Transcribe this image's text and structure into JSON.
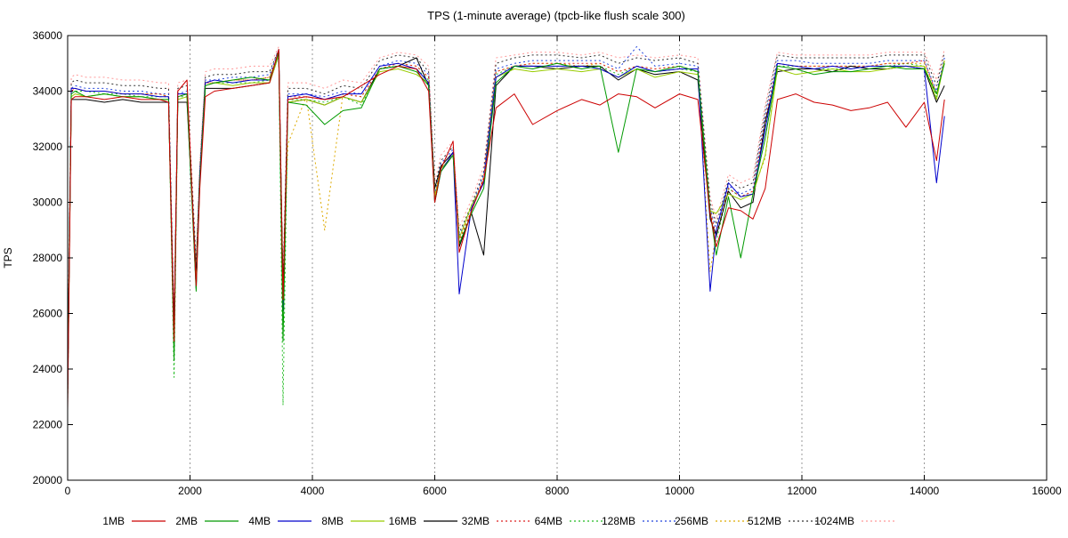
{
  "chart_data": {
    "type": "line",
    "title": "TPS (1-minute average) (tpcb-like flush scale 300)",
    "xlabel": "",
    "ylabel": "TPS",
    "xlim": [
      0,
      16000
    ],
    "ylim": [
      20000,
      36000
    ],
    "xticks": [
      0,
      2000,
      4000,
      6000,
      8000,
      10000,
      12000,
      14000,
      16000
    ],
    "yticks": [
      20000,
      22000,
      24000,
      26000,
      28000,
      30000,
      32000,
      34000,
      36000
    ],
    "grid": {
      "x": true,
      "y": false
    },
    "legend_position": "bottom",
    "x": [
      0,
      60,
      120,
      300,
      600,
      900,
      1200,
      1500,
      1650,
      1740,
      1800,
      1950,
      2100,
      2160,
      2250,
      2400,
      2700,
      3000,
      3300,
      3450,
      3520,
      3600,
      3900,
      4200,
      4500,
      4800,
      5100,
      5400,
      5700,
      5900,
      6000,
      6100,
      6300,
      6400,
      6600,
      6800,
      7000,
      7300,
      7600,
      8000,
      8400,
      8700,
      9000,
      9300,
      9600,
      10000,
      10300,
      10500,
      10600,
      10800,
      11000,
      11200,
      11400,
      11600,
      11900,
      12200,
      12500,
      12800,
      13100,
      13400,
      13700,
      14000,
      14200,
      14330
    ],
    "series": [
      {
        "name": "1MB",
        "color": "#cc0000",
        "dash": "solid",
        "values": [
          22500,
          33700,
          33800,
          33800,
          33700,
          33800,
          33700,
          33700,
          33600,
          25000,
          34000,
          34400,
          27000,
          30500,
          33800,
          34000,
          34100,
          34200,
          34300,
          35500,
          26500,
          33700,
          33800,
          33700,
          33800,
          34200,
          34600,
          34900,
          34800,
          34000,
          30000,
          31200,
          32200,
          28200,
          29700,
          30800,
          33400,
          33900,
          32800,
          33300,
          33700,
          33500,
          33900,
          33800,
          33400,
          33900,
          33700,
          29600,
          28400,
          29800,
          29700,
          29400,
          30500,
          33700,
          33900,
          33600,
          33500,
          33300,
          33400,
          33600,
          32700,
          33600,
          31500,
          33700
        ]
      },
      {
        "name": "2MB",
        "color": "#009900",
        "dash": "solid",
        "values": [
          23000,
          33900,
          34000,
          33800,
          33900,
          33800,
          33800,
          33700,
          33700,
          24300,
          33800,
          33900,
          26800,
          30700,
          34200,
          34300,
          34400,
          34500,
          34400,
          35400,
          25000,
          33600,
          33500,
          32800,
          33300,
          33400,
          34800,
          34900,
          34700,
          34200,
          30000,
          31100,
          31700,
          28500,
          29600,
          30500,
          34300,
          34900,
          34800,
          35000,
          34800,
          34900,
          31800,
          34800,
          34700,
          34900,
          34700,
          29700,
          28100,
          30200,
          28000,
          30300,
          32300,
          34900,
          34800,
          34600,
          34700,
          34700,
          34800,
          34900,
          34800,
          34800,
          33900,
          35000
        ]
      },
      {
        "name": "4MB",
        "color": "#0000cc",
        "dash": "solid",
        "values": [
          23200,
          34100,
          34100,
          34000,
          34000,
          33900,
          33900,
          33800,
          33800,
          24800,
          33900,
          33900,
          26900,
          30900,
          34300,
          34400,
          34300,
          34400,
          34400,
          35400,
          26100,
          33800,
          33900,
          33700,
          33900,
          33900,
          34900,
          35000,
          34800,
          34300,
          30000,
          31100,
          31800,
          26700,
          29800,
          30700,
          34500,
          34900,
          34900,
          34900,
          34900,
          34800,
          34500,
          34900,
          34700,
          34800,
          34800,
          26800,
          29000,
          30700,
          30200,
          30300,
          32600,
          35000,
          34900,
          34800,
          34900,
          34800,
          34900,
          34900,
          34900,
          34800,
          30700,
          33100
        ]
      },
      {
        "name": "8MB",
        "color": "#99cc00",
        "dash": "solid",
        "values": [
          23500,
          33800,
          33900,
          33800,
          33900,
          33800,
          33800,
          33700,
          33700,
          24700,
          33700,
          33800,
          27100,
          30900,
          34200,
          34300,
          34200,
          34300,
          34300,
          35300,
          26200,
          33600,
          33700,
          33500,
          33800,
          33600,
          34700,
          34800,
          34600,
          34300,
          30200,
          31200,
          31700,
          28700,
          29900,
          30700,
          34500,
          34800,
          34700,
          34800,
          34700,
          34800,
          34500,
          34800,
          34500,
          34700,
          34600,
          29700,
          29600,
          30300,
          30100,
          30300,
          31700,
          34800,
          34600,
          34700,
          34800,
          34700,
          34700,
          34800,
          34900,
          34900,
          33700,
          35100
        ]
      },
      {
        "name": "16MB",
        "color": "#000000",
        "dash": "solid",
        "values": [
          23300,
          33700,
          33700,
          33700,
          33600,
          33700,
          33600,
          33600,
          33600,
          25400,
          33600,
          33600,
          27400,
          31000,
          34100,
          34100,
          34100,
          34200,
          34300,
          35300,
          26800,
          33600,
          33700,
          33500,
          33800,
          33600,
          34800,
          34900,
          35200,
          34200,
          30500,
          31300,
          31800,
          28400,
          29600,
          28100,
          34200,
          34900,
          34900,
          34800,
          34900,
          34900,
          34400,
          34800,
          34600,
          34700,
          34400,
          29400,
          28800,
          30400,
          29800,
          30000,
          32900,
          34700,
          34800,
          34800,
          34700,
          34900,
          34800,
          34800,
          34900,
          34800,
          33600,
          34200
        ]
      },
      {
        "name": "32MB",
        "color": "#dd2222",
        "dash": "dotted",
        "values": [
          23000,
          34000,
          34100,
          34000,
          34000,
          33900,
          33900,
          33900,
          33800,
          24900,
          33800,
          33900,
          27300,
          30900,
          34300,
          34300,
          34400,
          34400,
          34500,
          35400,
          26400,
          33800,
          33800,
          33700,
          33900,
          33800,
          34800,
          35000,
          34900,
          34500,
          30200,
          31300,
          31800,
          28600,
          29700,
          30900,
          34700,
          34900,
          35000,
          35000,
          35000,
          35000,
          34700,
          34900,
          34800,
          34900,
          34700,
          29700,
          28800,
          30500,
          30200,
          30400,
          33000,
          35000,
          34900,
          34900,
          34900,
          34900,
          34900,
          35000,
          35000,
          35100,
          33900,
          35100
        ]
      },
      {
        "name": "64MB",
        "color": "#22bb22",
        "dash": "dotted",
        "values": [
          22800,
          34000,
          34000,
          34000,
          33900,
          33900,
          33800,
          33800,
          33800,
          23700,
          33800,
          33800,
          26900,
          30800,
          34200,
          34300,
          34300,
          34300,
          34400,
          35300,
          22700,
          33700,
          33700,
          33600,
          33800,
          33500,
          34800,
          34900,
          34800,
          34400,
          30100,
          31200,
          31700,
          28500,
          29700,
          30800,
          34600,
          34900,
          34900,
          34900,
          34900,
          34900,
          34600,
          34900,
          34700,
          34800,
          34700,
          29600,
          28600,
          30500,
          30200,
          30300,
          32800,
          34900,
          34900,
          34800,
          34800,
          34800,
          34900,
          34900,
          35000,
          34900,
          33800,
          35100
        ]
      },
      {
        "name": "128MB",
        "color": "#2244dd",
        "dash": "dotted",
        "values": [
          23400,
          34100,
          34200,
          34100,
          34100,
          34000,
          34000,
          33900,
          33900,
          25100,
          33900,
          34000,
          27500,
          31000,
          34400,
          34400,
          34500,
          34500,
          34600,
          35500,
          26600,
          33900,
          33900,
          33800,
          34000,
          33900,
          34900,
          35100,
          35000,
          34600,
          30300,
          31400,
          31900,
          28800,
          29800,
          31000,
          34800,
          35000,
          35100,
          35100,
          35100,
          35100,
          34800,
          35600,
          34900,
          35000,
          34900,
          29800,
          29000,
          30600,
          30300,
          30500,
          33100,
          35100,
          35100,
          35000,
          35000,
          35000,
          35000,
          35100,
          35100,
          35100,
          34000,
          35200
        ]
      },
      {
        "name": "256MB",
        "color": "#ddaa00",
        "dash": "dotted",
        "values": [
          23600,
          34000,
          34100,
          34000,
          34000,
          33900,
          33900,
          33900,
          33800,
          25300,
          33800,
          33900,
          27600,
          31000,
          34300,
          34300,
          34400,
          34400,
          34500,
          35400,
          26700,
          32100,
          33800,
          29000,
          33900,
          33800,
          34800,
          35000,
          34900,
          34500,
          30200,
          31300,
          31800,
          28700,
          29700,
          30900,
          34700,
          34900,
          35000,
          35000,
          34900,
          35000,
          34700,
          34900,
          34800,
          34900,
          34700,
          27500,
          28900,
          30500,
          30200,
          30400,
          31600,
          35000,
          34900,
          34900,
          34900,
          34900,
          34900,
          35000,
          35000,
          35000,
          33900,
          35100
        ]
      },
      {
        "name": "512MB",
        "color": "#333333",
        "dash": "dotted",
        "values": [
          23800,
          34300,
          34400,
          34300,
          34300,
          34200,
          34200,
          34100,
          34100,
          25600,
          34100,
          34200,
          27800,
          31200,
          34500,
          34600,
          34600,
          34700,
          34700,
          35500,
          27000,
          34100,
          34100,
          33900,
          34200,
          34100,
          35100,
          35300,
          35200,
          34700,
          30500,
          31500,
          32000,
          28900,
          29900,
          31100,
          35000,
          35200,
          35300,
          35300,
          35200,
          35300,
          35000,
          35200,
          35100,
          35200,
          35000,
          30000,
          29200,
          30800,
          30500,
          30700,
          33300,
          35300,
          35200,
          35200,
          35200,
          35200,
          35200,
          35300,
          35300,
          35300,
          34200,
          35400
        ]
      },
      {
        "name": "1024MB",
        "color": "#ff9999",
        "dash": "dotted",
        "values": [
          24000,
          34500,
          34600,
          34500,
          34500,
          34400,
          34400,
          34300,
          34300,
          25900,
          34300,
          34400,
          28000,
          31400,
          34700,
          34800,
          34800,
          34900,
          34900,
          35600,
          27300,
          34300,
          34300,
          34100,
          34400,
          34300,
          35200,
          35400,
          35300,
          34900,
          30700,
          31700,
          32200,
          29100,
          30100,
          31300,
          35200,
          35300,
          35400,
          35400,
          35300,
          35400,
          35200,
          35300,
          35200,
          35300,
          35200,
          30200,
          29400,
          31000,
          30700,
          30900,
          33500,
          35400,
          35300,
          35300,
          35300,
          35300,
          35300,
          35400,
          35400,
          35400,
          34400,
          35500
        ]
      }
    ]
  }
}
